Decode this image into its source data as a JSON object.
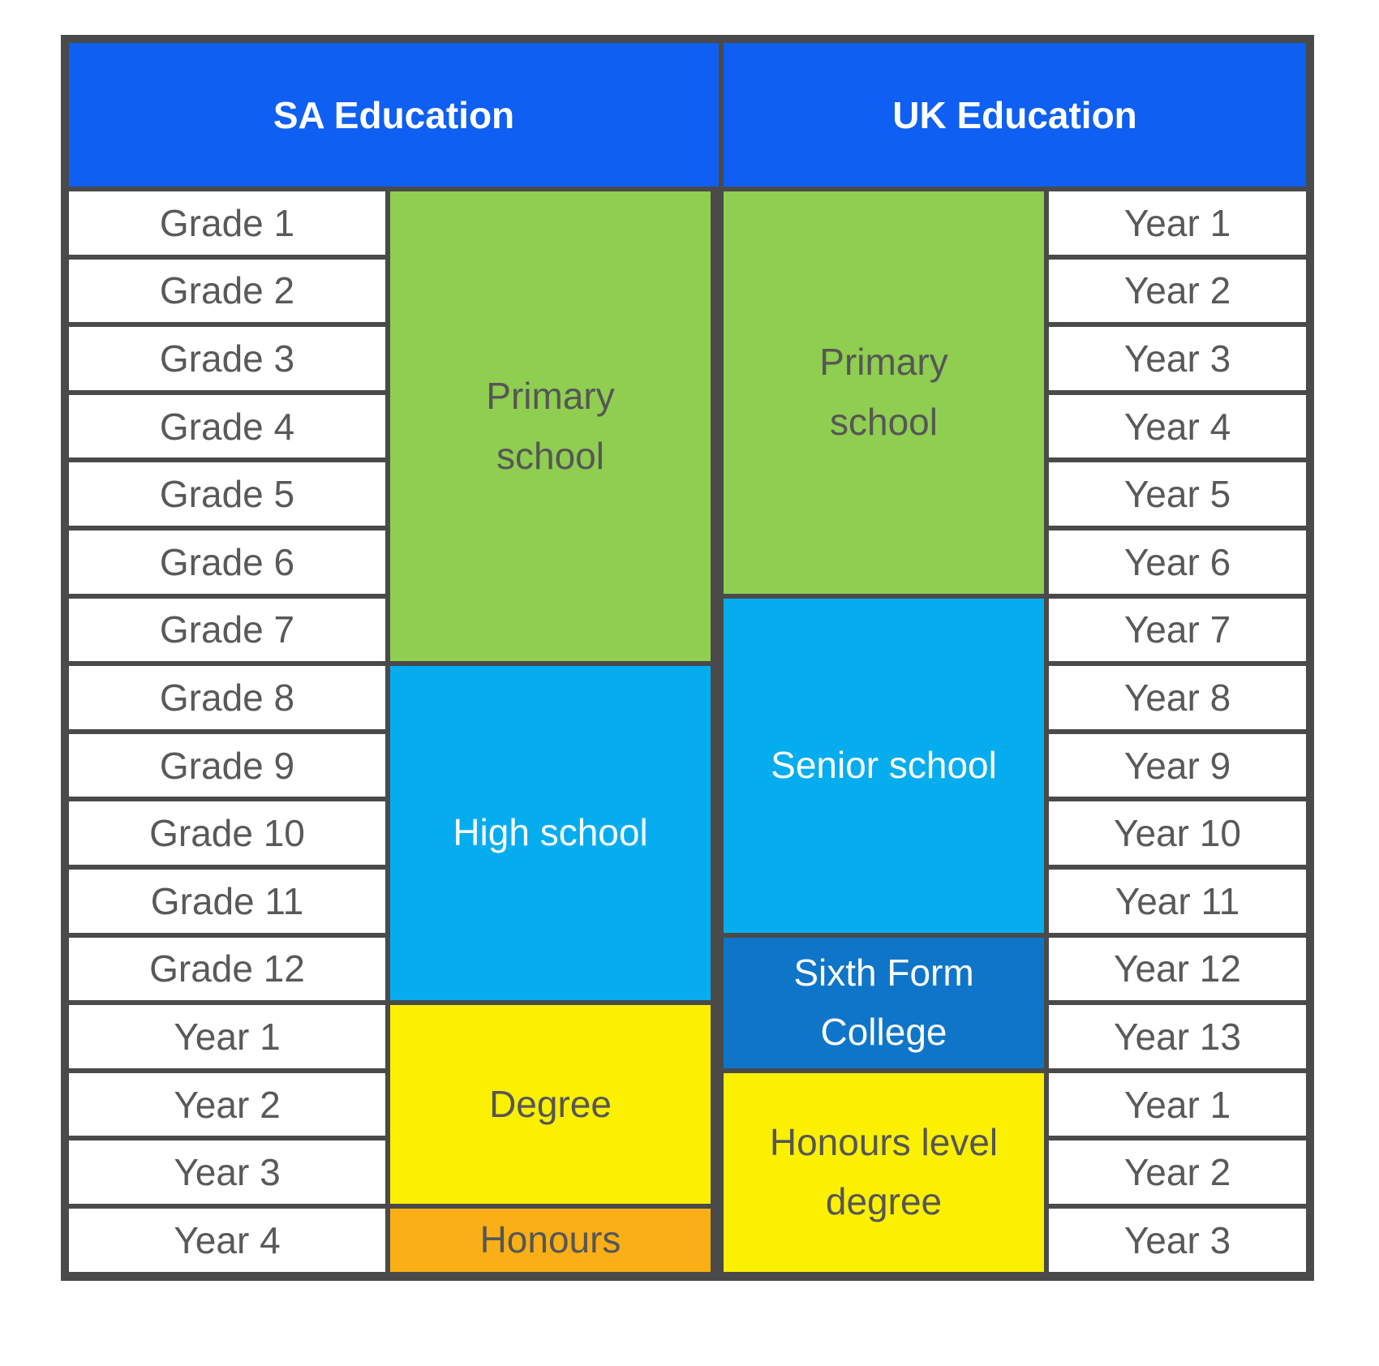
{
  "table": {
    "headers": {
      "sa": "SA Education",
      "uk": "UK Education"
    },
    "colors": {
      "border_gray": "#4A4A4A",
      "header_blue": "#0E5FF2",
      "header_text": "#FFFFFF",
      "primary_green": "#8FCE50",
      "school_light_blue": "#06ADEE",
      "sixth_form_blue": "#0F75C8",
      "degree_yellow": "#FBF000",
      "honours_orange": "#F9AF15",
      "cell_white": "#FFFFFF",
      "label_text": "#58595B",
      "block_text_dark": "#565656",
      "block_text_light": "#FFFFFF"
    },
    "sa": {
      "labels": [
        "Grade 1",
        "Grade 2",
        "Grade 3",
        "Grade 4",
        "Grade 5",
        "Grade 6",
        "Grade 7",
        "Grade 8",
        "Grade 9",
        "Grade 10",
        "Grade 11",
        "Grade 12",
        "Year 1",
        "Year 2",
        "Year 3",
        "Year 4"
      ],
      "blocks": [
        {
          "label": "Primary\nschool",
          "span_rows": 7,
          "bg": "#8FCE50",
          "fg": "#565656"
        },
        {
          "label": "High school",
          "span_rows": 5,
          "bg": "#06ADEE",
          "fg": "#FFFFFF"
        },
        {
          "label": "Degree",
          "span_rows": 3,
          "bg": "#FBF000",
          "fg": "#565656"
        },
        {
          "label": "Honours",
          "span_rows": 1,
          "bg": "#F9AF15",
          "fg": "#565656"
        }
      ]
    },
    "uk": {
      "blocks": [
        {
          "label": "Primary\nschool",
          "span_rows": 6,
          "bg": "#8FCE50",
          "fg": "#565656"
        },
        {
          "label": "Senior school",
          "span_rows": 5,
          "bg": "#06ADEE",
          "fg": "#FFFFFF"
        },
        {
          "label": "Sixth Form\nCollege",
          "span_rows": 2,
          "bg": "#0F75C8",
          "fg": "#FFFFFF"
        },
        {
          "label": "Honours level\ndegree",
          "span_rows": 3,
          "bg": "#FBF000",
          "fg": "#565656"
        }
      ],
      "labels": [
        "Year 1",
        "Year 2",
        "Year 3",
        "Year 4",
        "Year 5",
        "Year 6",
        "Year 7",
        "Year 8",
        "Year 9",
        "Year 10",
        "Year 11",
        "Year 12",
        "Year 13",
        "Year 1",
        "Year 2",
        "Year 3"
      ]
    }
  }
}
